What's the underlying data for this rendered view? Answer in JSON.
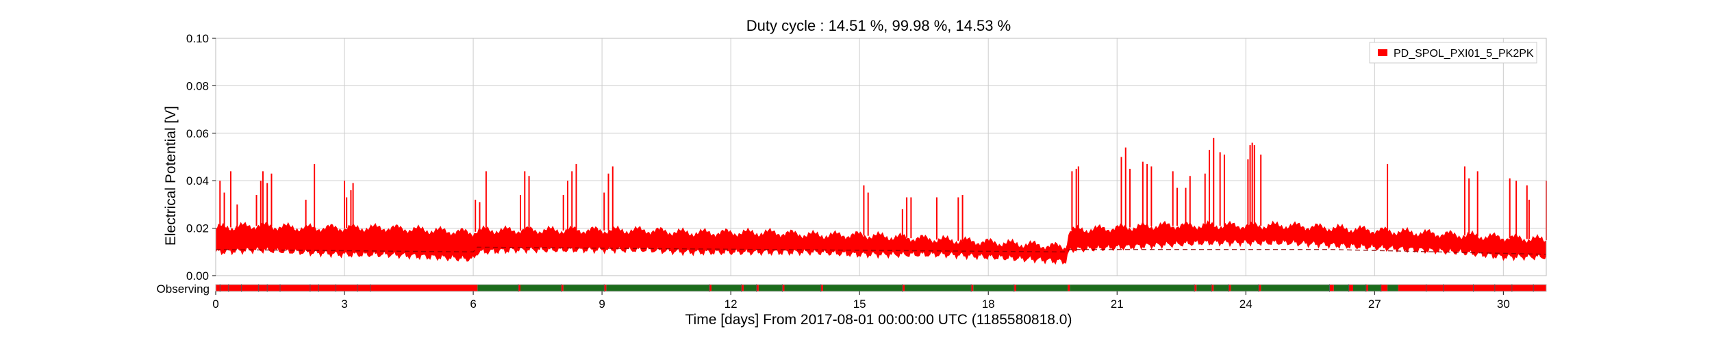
{
  "chart_data": {
    "type": "line",
    "title": "Duty cycle : 14.51 %, 99.98 %, 14.53 %",
    "xlabel": "Time [days] From 2017-08-01 00:00:00 UTC (1185580818.0)",
    "ylabel": "Electrical Potential [V]",
    "xlim": [
      0,
      31
    ],
    "ylim": [
      0,
      0.1
    ],
    "x_ticks": [
      0,
      3,
      6,
      9,
      12,
      15,
      18,
      21,
      24,
      27,
      30
    ],
    "y_ticks": [
      0.0,
      0.02,
      0.04,
      0.06,
      0.08,
      0.1
    ],
    "y_tick_labels": [
      "0.00",
      "0.02",
      "0.04",
      "0.06",
      "0.08",
      "0.10"
    ],
    "grid": true,
    "legend_position": "top-right",
    "series": [
      {
        "name": "PD_SPOL_PXI01_5_PK2PK",
        "color": "#ff0000",
        "band": {
          "x": [
            0,
            1,
            2,
            3,
            4,
            5,
            6,
            6.1,
            7,
            8,
            9,
            10,
            11,
            12,
            13,
            14,
            15,
            16,
            17,
            18,
            19,
            19.8,
            19.9,
            21,
            22,
            23,
            24,
            25,
            26,
            27,
            28,
            29,
            30,
            31
          ],
          "lower": [
            0.01,
            0.011,
            0.01,
            0.009,
            0.009,
            0.008,
            0.007,
            0.01,
            0.011,
            0.011,
            0.011,
            0.011,
            0.01,
            0.01,
            0.01,
            0.01,
            0.009,
            0.009,
            0.009,
            0.008,
            0.007,
            0.006,
            0.011,
            0.012,
            0.013,
            0.014,
            0.014,
            0.014,
            0.013,
            0.012,
            0.011,
            0.01,
            0.008,
            0.008
          ],
          "upper": [
            0.02,
            0.021,
            0.02,
            0.02,
            0.02,
            0.019,
            0.018,
            0.019,
            0.019,
            0.019,
            0.019,
            0.019,
            0.018,
            0.018,
            0.018,
            0.017,
            0.017,
            0.016,
            0.015,
            0.014,
            0.013,
            0.012,
            0.019,
            0.02,
            0.021,
            0.021,
            0.021,
            0.021,
            0.02,
            0.019,
            0.018,
            0.017,
            0.016,
            0.015
          ]
        },
        "baseline": {
          "x": [
            0,
            6,
            6.1,
            19.8,
            19.9,
            26,
            31
          ],
          "y": [
            0.011,
            0.01,
            0.012,
            0.01,
            0.011,
            0.011,
            0.009
          ]
        },
        "spikes": [
          [
            0.1,
            0.04
          ],
          [
            0.2,
            0.035
          ],
          [
            0.35,
            0.044
          ],
          [
            0.5,
            0.03
          ],
          [
            0.95,
            0.034
          ],
          [
            1.05,
            0.04
          ],
          [
            1.1,
            0.044
          ],
          [
            1.2,
            0.039
          ],
          [
            1.3,
            0.043
          ],
          [
            2.1,
            0.032
          ],
          [
            2.3,
            0.047
          ],
          [
            3.0,
            0.04
          ],
          [
            3.05,
            0.033
          ],
          [
            3.15,
            0.036
          ],
          [
            3.2,
            0.039
          ],
          [
            6.05,
            0.032
          ],
          [
            6.15,
            0.031
          ],
          [
            6.3,
            0.044
          ],
          [
            7.1,
            0.034
          ],
          [
            7.2,
            0.044
          ],
          [
            7.3,
            0.042
          ],
          [
            8.1,
            0.034
          ],
          [
            8.2,
            0.04
          ],
          [
            8.3,
            0.044
          ],
          [
            8.4,
            0.047
          ],
          [
            9.05,
            0.035
          ],
          [
            9.15,
            0.043
          ],
          [
            9.25,
            0.046
          ],
          [
            15.1,
            0.038
          ],
          [
            15.2,
            0.035
          ],
          [
            16.0,
            0.028
          ],
          [
            16.1,
            0.033
          ],
          [
            16.2,
            0.033
          ],
          [
            16.8,
            0.033
          ],
          [
            17.3,
            0.033
          ],
          [
            17.4,
            0.034
          ],
          [
            19.95,
            0.044
          ],
          [
            20.05,
            0.045
          ],
          [
            20.1,
            0.046
          ],
          [
            21.1,
            0.05
          ],
          [
            21.2,
            0.054
          ],
          [
            21.3,
            0.045
          ],
          [
            21.6,
            0.048
          ],
          [
            21.7,
            0.047
          ],
          [
            21.8,
            0.046
          ],
          [
            22.3,
            0.044
          ],
          [
            22.4,
            0.037
          ],
          [
            22.6,
            0.037
          ],
          [
            22.7,
            0.042
          ],
          [
            23.05,
            0.043
          ],
          [
            23.15,
            0.053
          ],
          [
            23.25,
            0.058
          ],
          [
            23.4,
            0.052
          ],
          [
            23.5,
            0.051
          ],
          [
            24.05,
            0.049
          ],
          [
            24.1,
            0.055
          ],
          [
            24.15,
            0.056
          ],
          [
            24.2,
            0.055
          ],
          [
            24.35,
            0.051
          ],
          [
            27.3,
            0.047
          ],
          [
            29.1,
            0.046
          ],
          [
            29.2,
            0.041
          ],
          [
            29.4,
            0.044
          ],
          [
            30.15,
            0.041
          ],
          [
            30.3,
            0.04
          ],
          [
            30.55,
            0.038
          ],
          [
            30.6,
            0.032
          ],
          [
            31.0,
            0.04
          ]
        ]
      }
    ],
    "state_bar": {
      "label": "Observing",
      "off_color": "#ff0000",
      "on_color": "#1b6b1b",
      "on_segments": [
        [
          6.1,
          7.05
        ],
        [
          7.1,
          8.05
        ],
        [
          8.1,
          9.05
        ],
        [
          9.1,
          11.5
        ],
        [
          11.55,
          12.25
        ],
        [
          12.3,
          12.6
        ],
        [
          12.65,
          13.2
        ],
        [
          13.25,
          14.1
        ],
        [
          14.15,
          16.0
        ],
        [
          16.05,
          17.6
        ],
        [
          17.65,
          18.6
        ],
        [
          18.65,
          19.85
        ],
        [
          19.9,
          22.8
        ],
        [
          22.85,
          23.2
        ],
        [
          23.25,
          23.6
        ],
        [
          23.65,
          24.3
        ],
        [
          24.35,
          25.95
        ],
        [
          26.05,
          26.4
        ],
        [
          26.5,
          26.8
        ],
        [
          26.85,
          27.15
        ],
        [
          27.3,
          27.55
        ]
      ],
      "off_segments": [
        [
          0,
          6.1
        ],
        [
          7.05,
          7.1
        ],
        [
          8.05,
          8.1
        ],
        [
          9.05,
          9.1
        ],
        [
          11.5,
          11.55
        ],
        [
          12.25,
          12.3
        ],
        [
          12.6,
          12.65
        ],
        [
          13.2,
          13.25
        ],
        [
          14.1,
          14.15
        ],
        [
          16.0,
          16.05
        ],
        [
          17.6,
          17.65
        ],
        [
          18.6,
          18.65
        ],
        [
          19.85,
          19.9
        ],
        [
          22.8,
          22.85
        ],
        [
          23.2,
          23.25
        ],
        [
          23.6,
          23.65
        ],
        [
          24.3,
          24.35
        ],
        [
          25.95,
          26.05
        ],
        [
          26.4,
          26.5
        ],
        [
          26.8,
          26.85
        ],
        [
          27.15,
          27.3
        ],
        [
          27.55,
          31
        ]
      ],
      "ticks": [
        0.1,
        0.3,
        0.6,
        1.0,
        1.2,
        1.5,
        2.2,
        2.4,
        2.8,
        3.3,
        3.6,
        7.05,
        8.05,
        9.05,
        11.5,
        12.25,
        12.6,
        13.2,
        14.1,
        16.0,
        17.6,
        18.6,
        22.8,
        23.2,
        23.6,
        24.3,
        25.95,
        26.4,
        26.8,
        27.15,
        28.2,
        28.6,
        29.3,
        29.8,
        30.2,
        30.7
      ]
    }
  }
}
